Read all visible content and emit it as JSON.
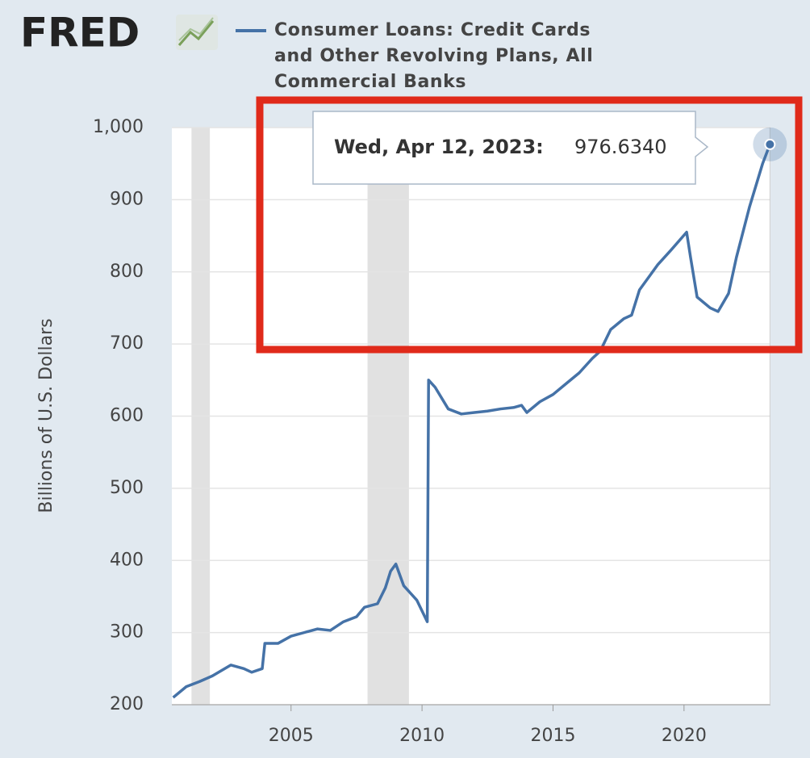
{
  "logo": "FRED",
  "chart_data": {
    "type": "line",
    "y_label": "Billions of U.S. Dollars",
    "x": [
      2000.5,
      2001.0,
      2001.5,
      2002.0,
      2002.7,
      2003.2,
      2003.5,
      2003.9,
      2004.0,
      2004.5,
      2005.0,
      2005.5,
      2006.0,
      2006.5,
      2007.0,
      2007.5,
      2007.8,
      2008.3,
      2008.6,
      2008.8,
      2009.0,
      2009.3,
      2009.8,
      2010.2,
      2010.25,
      2010.5,
      2011.0,
      2011.5,
      2012.0,
      2012.5,
      2013.0,
      2013.5,
      2013.8,
      2014.0,
      2014.5,
      2015.0,
      2015.5,
      2016.0,
      2016.5,
      2016.8,
      2017.2,
      2017.7,
      2018.0,
      2018.3,
      2018.7,
      2019.0,
      2019.5,
      2020.1,
      2020.25,
      2020.5,
      2021.0,
      2021.3,
      2021.7,
      2022.0,
      2022.5,
      2023.0,
      2023.28
    ],
    "series": [
      {
        "name": "Consumer Loans: Credit Cards and Other Revolving Plans, All Commercial Banks",
        "color": "#4572a7",
        "values": [
          210,
          225,
          232,
          240,
          255,
          250,
          245,
          250,
          285,
          285,
          295,
          300,
          305,
          303,
          315,
          322,
          335,
          340,
          362,
          385,
          395,
          365,
          345,
          315,
          650,
          640,
          610,
          603,
          605,
          607,
          610,
          612,
          615,
          605,
          620,
          630,
          645,
          660,
          680,
          690,
          720,
          735,
          740,
          775,
          795,
          810,
          830,
          855,
          820,
          765,
          750,
          745,
          770,
          820,
          890,
          950,
          976.634
        ]
      }
    ],
    "recessions": [
      [
        2001.2,
        2001.9
      ],
      [
        2007.92,
        2009.5
      ]
    ],
    "xlim": [
      2000.45,
      2023.3
    ],
    "xticks": [
      2005,
      2010,
      2015,
      2020
    ],
    "ylim": [
      200,
      1000
    ],
    "yticks": [
      200,
      300,
      400,
      500,
      600,
      700,
      800,
      900,
      {
        "value": 1000,
        "label": "1,000"
      }
    ],
    "grid": true,
    "tooltip": {
      "date": "Wed, Apr 12, 2023:",
      "value": 976.634,
      "value_label": "976.6340"
    }
  }
}
